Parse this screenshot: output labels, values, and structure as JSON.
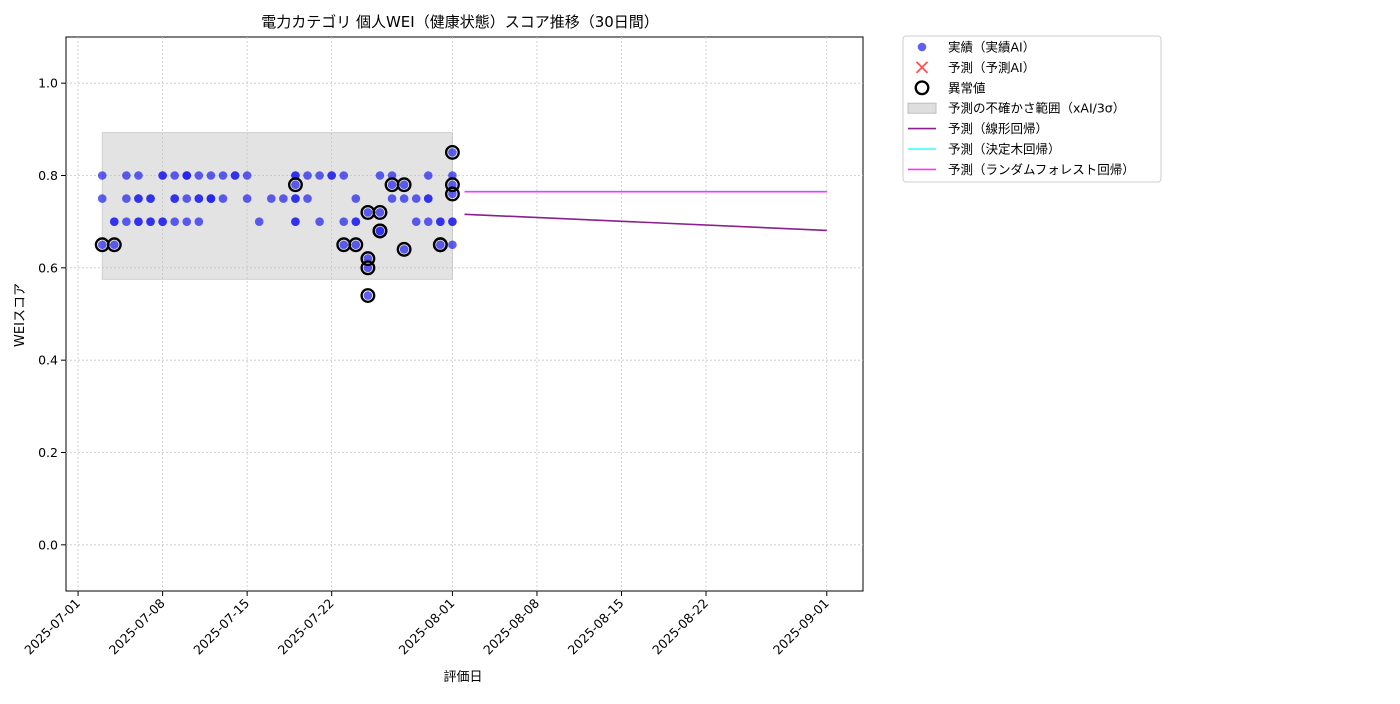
{
  "chart_data": {
    "type": "scatter",
    "title": "電力カテゴリ 個人WEI（健康状態）スコア推移（30日間）",
    "xlabel": "評価日",
    "ylabel": "WEIスコア",
    "xlim": [
      "2025-06-30",
      "2025-09-04"
    ],
    "ylim": [
      -0.1,
      1.1
    ],
    "x_ticks": [
      "2025-07-01",
      "2025-07-08",
      "2025-07-15",
      "2025-07-22",
      "2025-08-01",
      "2025-08-08",
      "2025-08-15",
      "2025-08-22",
      "2025-09-01"
    ],
    "y_ticks": [
      0.0,
      0.2,
      0.4,
      0.6,
      0.8,
      1.0
    ],
    "y_tick_labels": [
      "0.0",
      "0.2",
      "0.4",
      "0.6",
      "0.8",
      "1.0"
    ],
    "grid": true,
    "legend_position": "outside-upper-right",
    "legend": [
      {
        "label": "実績（実績AI）",
        "kind": "dot",
        "color": "#2222ee"
      },
      {
        "label": "予測（予測AI）",
        "kind": "cross",
        "color": "#ff3333"
      },
      {
        "label": "異常値",
        "kind": "ring",
        "color": "#000000"
      },
      {
        "label": "予測の不確かさ範囲（xAI/3σ）",
        "kind": "band",
        "color": "#d9d9d9"
      },
      {
        "label": "予測（線形回帰）",
        "kind": "line",
        "color": "#8b1f8f"
      },
      {
        "label": "予測（決定木回帰）",
        "kind": "line",
        "color": "#33ffff"
      },
      {
        "label": "予測（ランダムフォレスト回帰）",
        "kind": "line",
        "color": "#ff33ff"
      }
    ],
    "uncertainty_band": {
      "x": [
        "2025-07-03",
        "2025-08-01"
      ],
      "y": [
        0.575,
        0.893
      ]
    },
    "series": [
      {
        "name": "実績（実績AI）",
        "type": "scatter",
        "color": "#2222ee",
        "points": [
          [
            "2025-07-03",
            0.75
          ],
          [
            "2025-07-03",
            0.65
          ],
          [
            "2025-07-03",
            0.8
          ],
          [
            "2025-07-04",
            0.65
          ],
          [
            "2025-07-04",
            0.7
          ],
          [
            "2025-07-04",
            0.7
          ],
          [
            "2025-07-05",
            0.7
          ],
          [
            "2025-07-05",
            0.8
          ],
          [
            "2025-07-05",
            0.75
          ],
          [
            "2025-07-06",
            0.7
          ],
          [
            "2025-07-06",
            0.7
          ],
          [
            "2025-07-06",
            0.75
          ],
          [
            "2025-07-06",
            0.8
          ],
          [
            "2025-07-06",
            0.75
          ],
          [
            "2025-07-07",
            0.7
          ],
          [
            "2025-07-07",
            0.75
          ],
          [
            "2025-07-07",
            0.7
          ],
          [
            "2025-07-07",
            0.75
          ],
          [
            "2025-07-08",
            0.8
          ],
          [
            "2025-07-08",
            0.8
          ],
          [
            "2025-07-08",
            0.7
          ],
          [
            "2025-07-08",
            0.7
          ],
          [
            "2025-07-09",
            0.7
          ],
          [
            "2025-07-09",
            0.8
          ],
          [
            "2025-07-09",
            0.75
          ],
          [
            "2025-07-09",
            0.75
          ],
          [
            "2025-07-10",
            0.8
          ],
          [
            "2025-07-10",
            0.7
          ],
          [
            "2025-07-10",
            0.8
          ],
          [
            "2025-07-10",
            0.8
          ],
          [
            "2025-07-10",
            0.75
          ],
          [
            "2025-07-11",
            0.75
          ],
          [
            "2025-07-11",
            0.7
          ],
          [
            "2025-07-11",
            0.8
          ],
          [
            "2025-07-11",
            0.75
          ],
          [
            "2025-07-12",
            0.75
          ],
          [
            "2025-07-12",
            0.75
          ],
          [
            "2025-07-12",
            0.8
          ],
          [
            "2025-07-12",
            0.75
          ],
          [
            "2025-07-13",
            0.8
          ],
          [
            "2025-07-13",
            0.75
          ],
          [
            "2025-07-14",
            0.8
          ],
          [
            "2025-07-14",
            0.8
          ],
          [
            "2025-07-15",
            0.75
          ],
          [
            "2025-07-15",
            0.8
          ],
          [
            "2025-07-16",
            0.7
          ],
          [
            "2025-07-17",
            0.75
          ],
          [
            "2025-07-18",
            0.75
          ],
          [
            "2025-07-19",
            0.8
          ],
          [
            "2025-07-19",
            0.7
          ],
          [
            "2025-07-19",
            0.75
          ],
          [
            "2025-07-19",
            0.78
          ],
          [
            "2025-07-19",
            0.7
          ],
          [
            "2025-07-19",
            0.75
          ],
          [
            "2025-07-19",
            0.8
          ],
          [
            "2025-07-20",
            0.8
          ],
          [
            "2025-07-20",
            0.75
          ],
          [
            "2025-07-21",
            0.8
          ],
          [
            "2025-07-21",
            0.7
          ],
          [
            "2025-07-22",
            0.8
          ],
          [
            "2025-07-22",
            0.8
          ],
          [
            "2025-07-23",
            0.65
          ],
          [
            "2025-07-23",
            0.7
          ],
          [
            "2025-07-23",
            0.8
          ],
          [
            "2025-07-24",
            0.7
          ],
          [
            "2025-07-24",
            0.65
          ],
          [
            "2025-07-24",
            0.7
          ],
          [
            "2025-07-24",
            0.75
          ],
          [
            "2025-07-25",
            0.72
          ],
          [
            "2025-07-25",
            0.6
          ],
          [
            "2025-07-25",
            0.54
          ],
          [
            "2025-07-25",
            0.62
          ],
          [
            "2025-07-26",
            0.68
          ],
          [
            "2025-07-26",
            0.68
          ],
          [
            "2025-07-26",
            0.72
          ],
          [
            "2025-07-26",
            0.8
          ],
          [
            "2025-07-27",
            0.75
          ],
          [
            "2025-07-27",
            0.78
          ],
          [
            "2025-07-27",
            0.8
          ],
          [
            "2025-07-28",
            0.75
          ],
          [
            "2025-07-28",
            0.64
          ],
          [
            "2025-07-28",
            0.78
          ],
          [
            "2025-07-29",
            0.7
          ],
          [
            "2025-07-29",
            0.75
          ],
          [
            "2025-07-30",
            0.7
          ],
          [
            "2025-07-30",
            0.75
          ],
          [
            "2025-07-30",
            0.8
          ],
          [
            "2025-07-30",
            0.75
          ],
          [
            "2025-07-31",
            0.65
          ],
          [
            "2025-07-31",
            0.7
          ],
          [
            "2025-07-31",
            0.7
          ],
          [
            "2025-08-01",
            0.76
          ],
          [
            "2025-08-01",
            0.78
          ],
          [
            "2025-08-01",
            0.65
          ],
          [
            "2025-08-01",
            0.7
          ],
          [
            "2025-08-01",
            0.85
          ],
          [
            "2025-08-01",
            0.8
          ],
          [
            "2025-08-01",
            0.7
          ]
        ]
      },
      {
        "name": "異常値",
        "type": "ring",
        "color": "#000000",
        "points": [
          [
            "2025-07-03",
            0.65
          ],
          [
            "2025-07-04",
            0.65
          ],
          [
            "2025-07-19",
            0.78
          ],
          [
            "2025-07-23",
            0.65
          ],
          [
            "2025-07-24",
            0.65
          ],
          [
            "2025-07-25",
            0.72
          ],
          [
            "2025-07-25",
            0.6
          ],
          [
            "2025-07-25",
            0.54
          ],
          [
            "2025-07-25",
            0.62
          ],
          [
            "2025-07-26",
            0.68
          ],
          [
            "2025-07-26",
            0.68
          ],
          [
            "2025-07-26",
            0.72
          ],
          [
            "2025-07-27",
            0.78
          ],
          [
            "2025-07-28",
            0.64
          ],
          [
            "2025-07-28",
            0.78
          ],
          [
            "2025-07-31",
            0.65
          ],
          [
            "2025-07-31",
            0.65
          ],
          [
            "2025-08-01",
            0.76
          ],
          [
            "2025-08-01",
            0.78
          ],
          [
            "2025-08-01",
            0.85
          ]
        ]
      },
      {
        "name": "予測（線形回帰）",
        "type": "line",
        "color": "#8b1f8f",
        "points": [
          [
            "2025-08-02",
            0.716
          ],
          [
            "2025-09-01",
            0.681
          ]
        ]
      },
      {
        "name": "予測（決定木回帰）",
        "type": "line",
        "color": "#33ffff",
        "points": [
          [
            "2025-08-02",
            0.765
          ],
          [
            "2025-09-01",
            0.765
          ]
        ]
      },
      {
        "name": "予測（ランダムフォレスト回帰）",
        "type": "line",
        "color": "#ff33ff",
        "points": [
          [
            "2025-08-02",
            0.765
          ],
          [
            "2025-09-01",
            0.765
          ]
        ]
      }
    ]
  }
}
